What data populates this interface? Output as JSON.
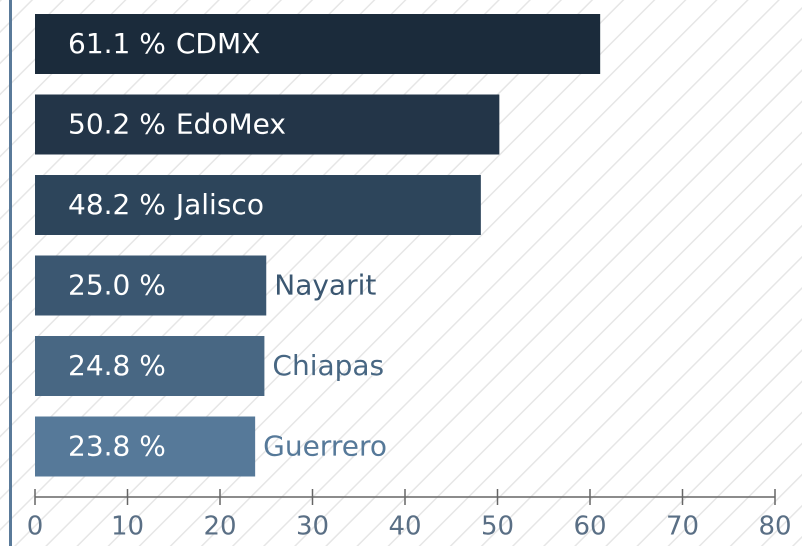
{
  "chart_data": {
    "type": "bar",
    "orientation": "horizontal",
    "categories": [
      "CDMX",
      "EdoMex",
      "Jalisco",
      "Nayarit",
      "Chiapas",
      "Guerrero"
    ],
    "values": [
      61.1,
      50.2,
      48.2,
      25.0,
      24.8,
      23.8
    ],
    "value_labels": [
      "61.1 %",
      "50.2 %",
      "48.2 %",
      "25.0 %",
      "24.8 %",
      "23.8 %"
    ],
    "colors": [
      "#1b2b3b",
      "#233548",
      "#2d455b",
      "#3b5771",
      "#486783",
      "#567999"
    ],
    "xlim": [
      0,
      80
    ],
    "xticks": [
      0,
      10,
      20,
      30,
      40,
      50,
      60,
      70,
      80
    ]
  }
}
